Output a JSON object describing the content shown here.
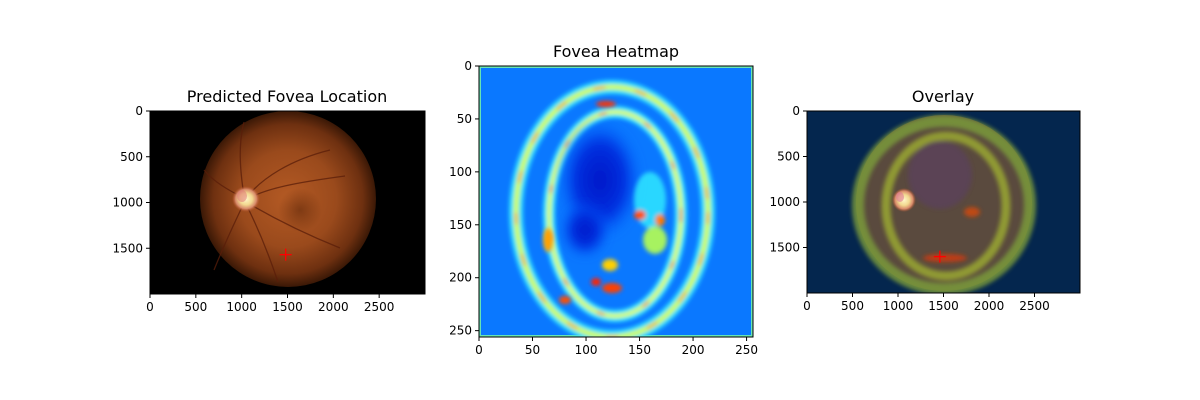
{
  "chart_data": [
    {
      "type": "image",
      "title": "Predicted Fovea Location",
      "image": "retinal-fundus-photo",
      "xlim": [
        0,
        3000
      ],
      "ylim": [
        2000,
        0
      ],
      "xticks": [
        0,
        500,
        1000,
        1500,
        2000,
        2500
      ],
      "yticks": [
        0,
        500,
        1000,
        1500
      ],
      "markers": [
        {
          "label": "predicted-fovea",
          "x": 1480,
          "y": 1570,
          "symbol": "+",
          "color": "#ff0000"
        }
      ]
    },
    {
      "type": "heatmap",
      "title": "Fovea Heatmap",
      "colormap": "jet",
      "xlim": [
        0,
        256
      ],
      "ylim": [
        256,
        0
      ],
      "xticks": [
        0,
        50,
        100,
        150,
        200,
        250
      ],
      "yticks": [
        0,
        50,
        100,
        150,
        200,
        250
      ]
    },
    {
      "type": "image",
      "title": "Overlay",
      "image": "fundus-with-heatmap-overlay",
      "xlim": [
        0,
        3000
      ],
      "ylim": [
        2000,
        0
      ],
      "xticks": [
        0,
        500,
        1000,
        1500,
        2000,
        2500
      ],
      "yticks": [
        0,
        500,
        1000,
        1500
      ],
      "markers": [
        {
          "label": "predicted-fovea",
          "x": 1460,
          "y": 1600,
          "symbol": "+",
          "color": "#ff0000"
        }
      ]
    }
  ]
}
